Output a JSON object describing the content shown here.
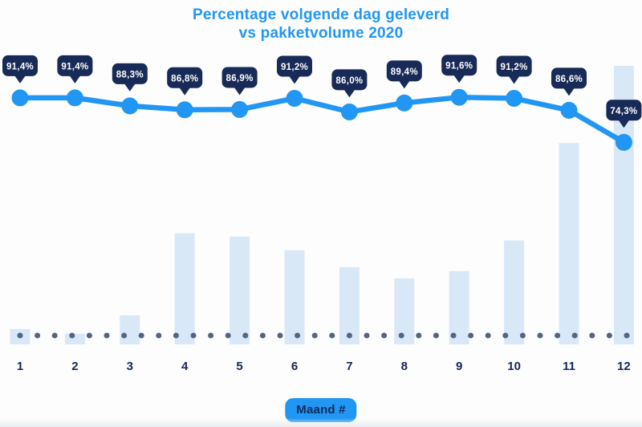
{
  "title": {
    "line1": "Percentage volgende dag geleverd",
    "line2": "vs pakketvolume 2020"
  },
  "xaxis_badge": "Maand #",
  "colors": {
    "accent_blue": "#2196f3",
    "badge_navy": "#182a57",
    "badge_text": "#ffffff",
    "bar_fill": "#d9e8f7",
    "dot": "#536487",
    "axis_label": "#14275a",
    "maand_text": "#0e2a5a",
    "background": "#fdfdfd"
  },
  "chart_data": {
    "type": "combo (line + bar)",
    "title": "Percentage volgende dag geleverd vs pakketvolume 2020",
    "categories": [
      "1",
      "2",
      "3",
      "4",
      "5",
      "6",
      "7",
      "8",
      "9",
      "10",
      "11",
      "12"
    ],
    "xlabel": "Maand #",
    "legend": "none",
    "gridlines": false,
    "baseline": "dotted",
    "y_axis": {
      "visible": false,
      "line_percent_scale": [
        0,
        100
      ]
    },
    "series": [
      {
        "name": "Percentage volgende dag geleverd",
        "type": "line",
        "unit": "%",
        "values": [
          91.4,
          91.4,
          88.3,
          86.8,
          86.9,
          91.2,
          86.0,
          89.4,
          91.6,
          91.2,
          86.6,
          74.3
        ],
        "labels": [
          "91,4%",
          "91,4%",
          "88,3%",
          "86,8%",
          "86,9%",
          "91,2%",
          "86,0%",
          "89,4%",
          "91,6%",
          "91,2%",
          "86,6%",
          "74,3%"
        ]
      },
      {
        "name": "Pakketvolume 2020",
        "type": "bar",
        "unit": "relative volume (highest month = 100, estimated from bar heights)",
        "values": [
          5.5,
          3.8,
          10.4,
          39.9,
          38.7,
          33.8,
          27.7,
          23.7,
          26.3,
          37.3,
          72.3,
          100
        ]
      }
    ]
  }
}
